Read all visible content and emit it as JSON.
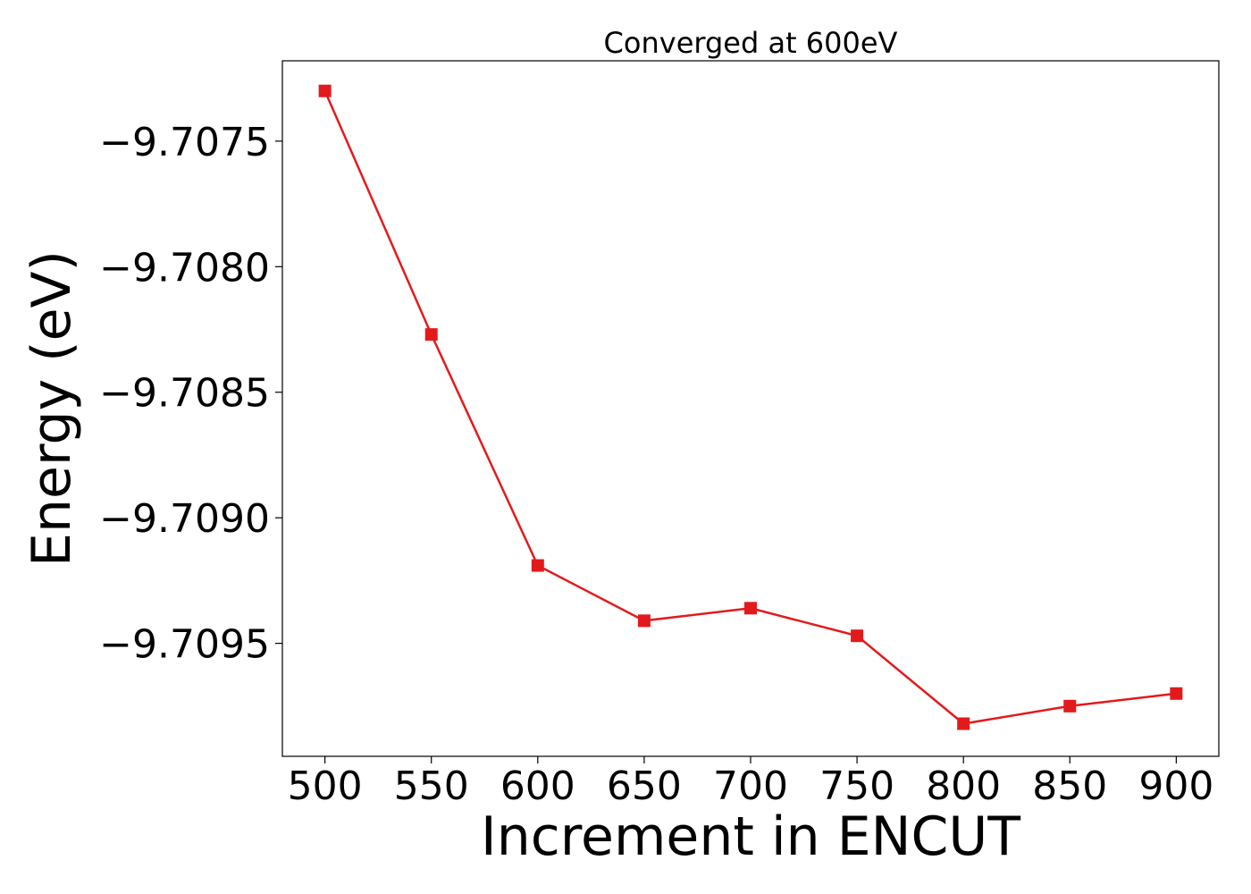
{
  "chart_data": {
    "type": "line",
    "title": "Converged at 600eV",
    "xlabel": "Increment in ENCUT",
    "ylabel": "Energy (eV)",
    "xlim": [
      480,
      920
    ],
    "ylim": [
      -9.70995,
      -9.70718
    ],
    "x_ticks": [
      500,
      550,
      600,
      650,
      700,
      750,
      800,
      850,
      900
    ],
    "x_tick_labels": [
      "500",
      "550",
      "600",
      "650",
      "700",
      "750",
      "800",
      "850",
      "900"
    ],
    "y_ticks": [
      -9.7075,
      -9.708,
      -9.7085,
      -9.709,
      -9.7095
    ],
    "y_tick_labels": [
      "−9.7075",
      "−9.7080",
      "−9.7085",
      "−9.7090",
      "−9.7095"
    ],
    "grid": false,
    "series": [
      {
        "color": "#e31a1c",
        "marker": "square",
        "x": [
          500,
          550,
          600,
          650,
          700,
          750,
          800,
          850,
          900
        ],
        "y": [
          -9.7073,
          -9.70827,
          -9.70919,
          -9.70941,
          -9.70936,
          -9.70947,
          -9.70982,
          -9.70975,
          -9.7097
        ]
      }
    ]
  }
}
